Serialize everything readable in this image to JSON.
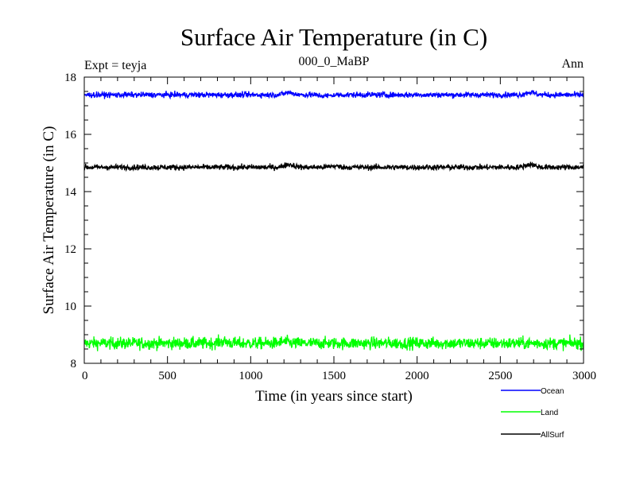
{
  "chart_data": {
    "type": "line",
    "title": "Surface Air Temperature (in C)",
    "experiment_label": "Expt = teyja",
    "subtitle": "000_0_MaBP",
    "season": "Ann",
    "xlabel": "Time (in years since start)",
    "ylabel": "Surface Air Temperature (in C)",
    "xlim": [
      0,
      3000
    ],
    "ylim": [
      8,
      18
    ],
    "xticks": [
      0,
      500,
      1000,
      1500,
      2000,
      2500,
      3000
    ],
    "yticks": [
      8,
      10,
      12,
      14,
      16,
      18
    ],
    "x_minor_step": 100,
    "y_minor_step": 0.5,
    "grid": false,
    "legend_position": "bottom-right",
    "series": [
      {
        "name": "Ocean",
        "color": "#0000ff",
        "mean": 17.38,
        "noise": 0.07,
        "anomalies": [
          {
            "x": 1230,
            "dy": 0.08
          },
          {
            "x": 2680,
            "dy": 0.09
          },
          {
            "x": 1450,
            "dy": -0.04
          }
        ]
      },
      {
        "name": "Land",
        "color": "#00ff00",
        "mean": 8.7,
        "noise": 0.15,
        "anomalies": [
          {
            "x": 830,
            "dy": 0.06
          },
          {
            "x": 1200,
            "dy": 0.05
          }
        ]
      },
      {
        "name": "AllSurf",
        "color": "#000000",
        "mean": 14.85,
        "noise": 0.07,
        "anomalies": [
          {
            "x": 1230,
            "dy": 0.1
          },
          {
            "x": 2680,
            "dy": 0.1
          },
          {
            "x": 1500,
            "dy": 0.04
          }
        ]
      }
    ]
  }
}
